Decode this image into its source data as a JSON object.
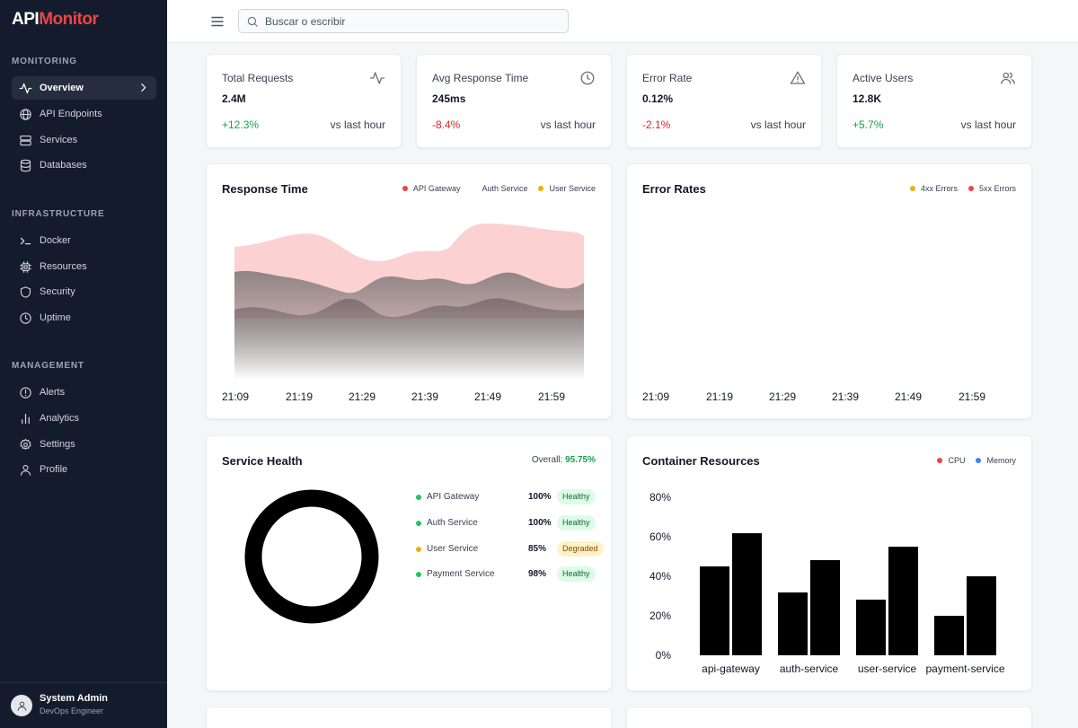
{
  "sidebar": {
    "logo_api": "API",
    "logo_monitor": "Monitor",
    "sections": [
      {
        "title": "MONITORING",
        "items": [
          {
            "label": "Overview"
          },
          {
            "label": "API Endpoints"
          },
          {
            "label": "Services"
          },
          {
            "label": "Databases"
          }
        ]
      },
      {
        "title": "INFRASTRUCTURE",
        "items": [
          {
            "label": "Docker"
          },
          {
            "label": "Resources"
          },
          {
            "label": "Security"
          },
          {
            "label": "Uptime"
          }
        ]
      },
      {
        "title": "MANAGEMENT",
        "items": [
          {
            "label": "Alerts"
          },
          {
            "label": "Analytics"
          },
          {
            "label": "Settings"
          },
          {
            "label": "Profile"
          }
        ]
      }
    ],
    "user": {
      "name": "System Admin",
      "role": "DevOps Engineer"
    }
  },
  "topbar": {
    "search_placeholder": "Buscar o escribir"
  },
  "stats": [
    {
      "title": "Total Requests",
      "value": "2.4M",
      "change": "+12.3%",
      "compare": "vs last hour",
      "icon": "activity-icon"
    },
    {
      "title": "Avg Response Time",
      "value": "245ms",
      "change": "-8.4%",
      "compare": "vs last hour",
      "icon": "clock-icon"
    },
    {
      "title": "Error Rate",
      "value": "0.12%",
      "change": "-2.1%",
      "compare": "vs last hour",
      "icon": "warning-icon"
    },
    {
      "title": "Active Users",
      "value": "12.8K",
      "change": "+5.7%",
      "compare": "vs last hour",
      "icon": "users-icon"
    }
  ],
  "response_time": {
    "title": "Response Time",
    "legend": [
      "API Gateway",
      "Auth Service",
      "User Service"
    ],
    "x_labels": [
      "21:09",
      "21:19",
      "21:29",
      "21:39",
      "21:49",
      "21:59"
    ]
  },
  "error_rates": {
    "title": "Error Rates",
    "legend": [
      "4xx Errors",
      "5xx Errors"
    ],
    "x_labels": [
      "21:09",
      "21:19",
      "21:29",
      "21:39",
      "21:49",
      "21:59"
    ]
  },
  "service_health": {
    "title": "Service Health",
    "overall_label": "Overall:",
    "overall_value": "95.75%",
    "services": [
      {
        "name": "API Gateway",
        "pct": "100%",
        "status": "Healthy"
      },
      {
        "name": "Auth Service",
        "pct": "100%",
        "status": "Healthy"
      },
      {
        "name": "User Service",
        "pct": "85%",
        "status": "Degraded"
      },
      {
        "name": "Payment Service",
        "pct": "98%",
        "status": "Healthy"
      }
    ]
  },
  "container_resources": {
    "title": "Container Resources",
    "legend": [
      "CPU",
      "Memory"
    ]
  },
  "colors": {
    "accent_red": "#ef4444",
    "healthy_green": "#22c55e",
    "warn_amber": "#eab308",
    "memory_blue": "#3b82f6"
  },
  "chart_data": {
    "type": "bar",
    "categories": [
      "api-gateway",
      "auth-service",
      "user-service",
      "payment-service"
    ],
    "series": [
      {
        "name": "CPU",
        "values": [
          45,
          32,
          28,
          20
        ]
      },
      {
        "name": "Memory",
        "values": [
          62,
          48,
          55,
          40
        ]
      }
    ],
    "ylim": [
      0,
      80
    ],
    "yticks": [
      "0%",
      "20%",
      "40%",
      "60%",
      "80%"
    ]
  }
}
